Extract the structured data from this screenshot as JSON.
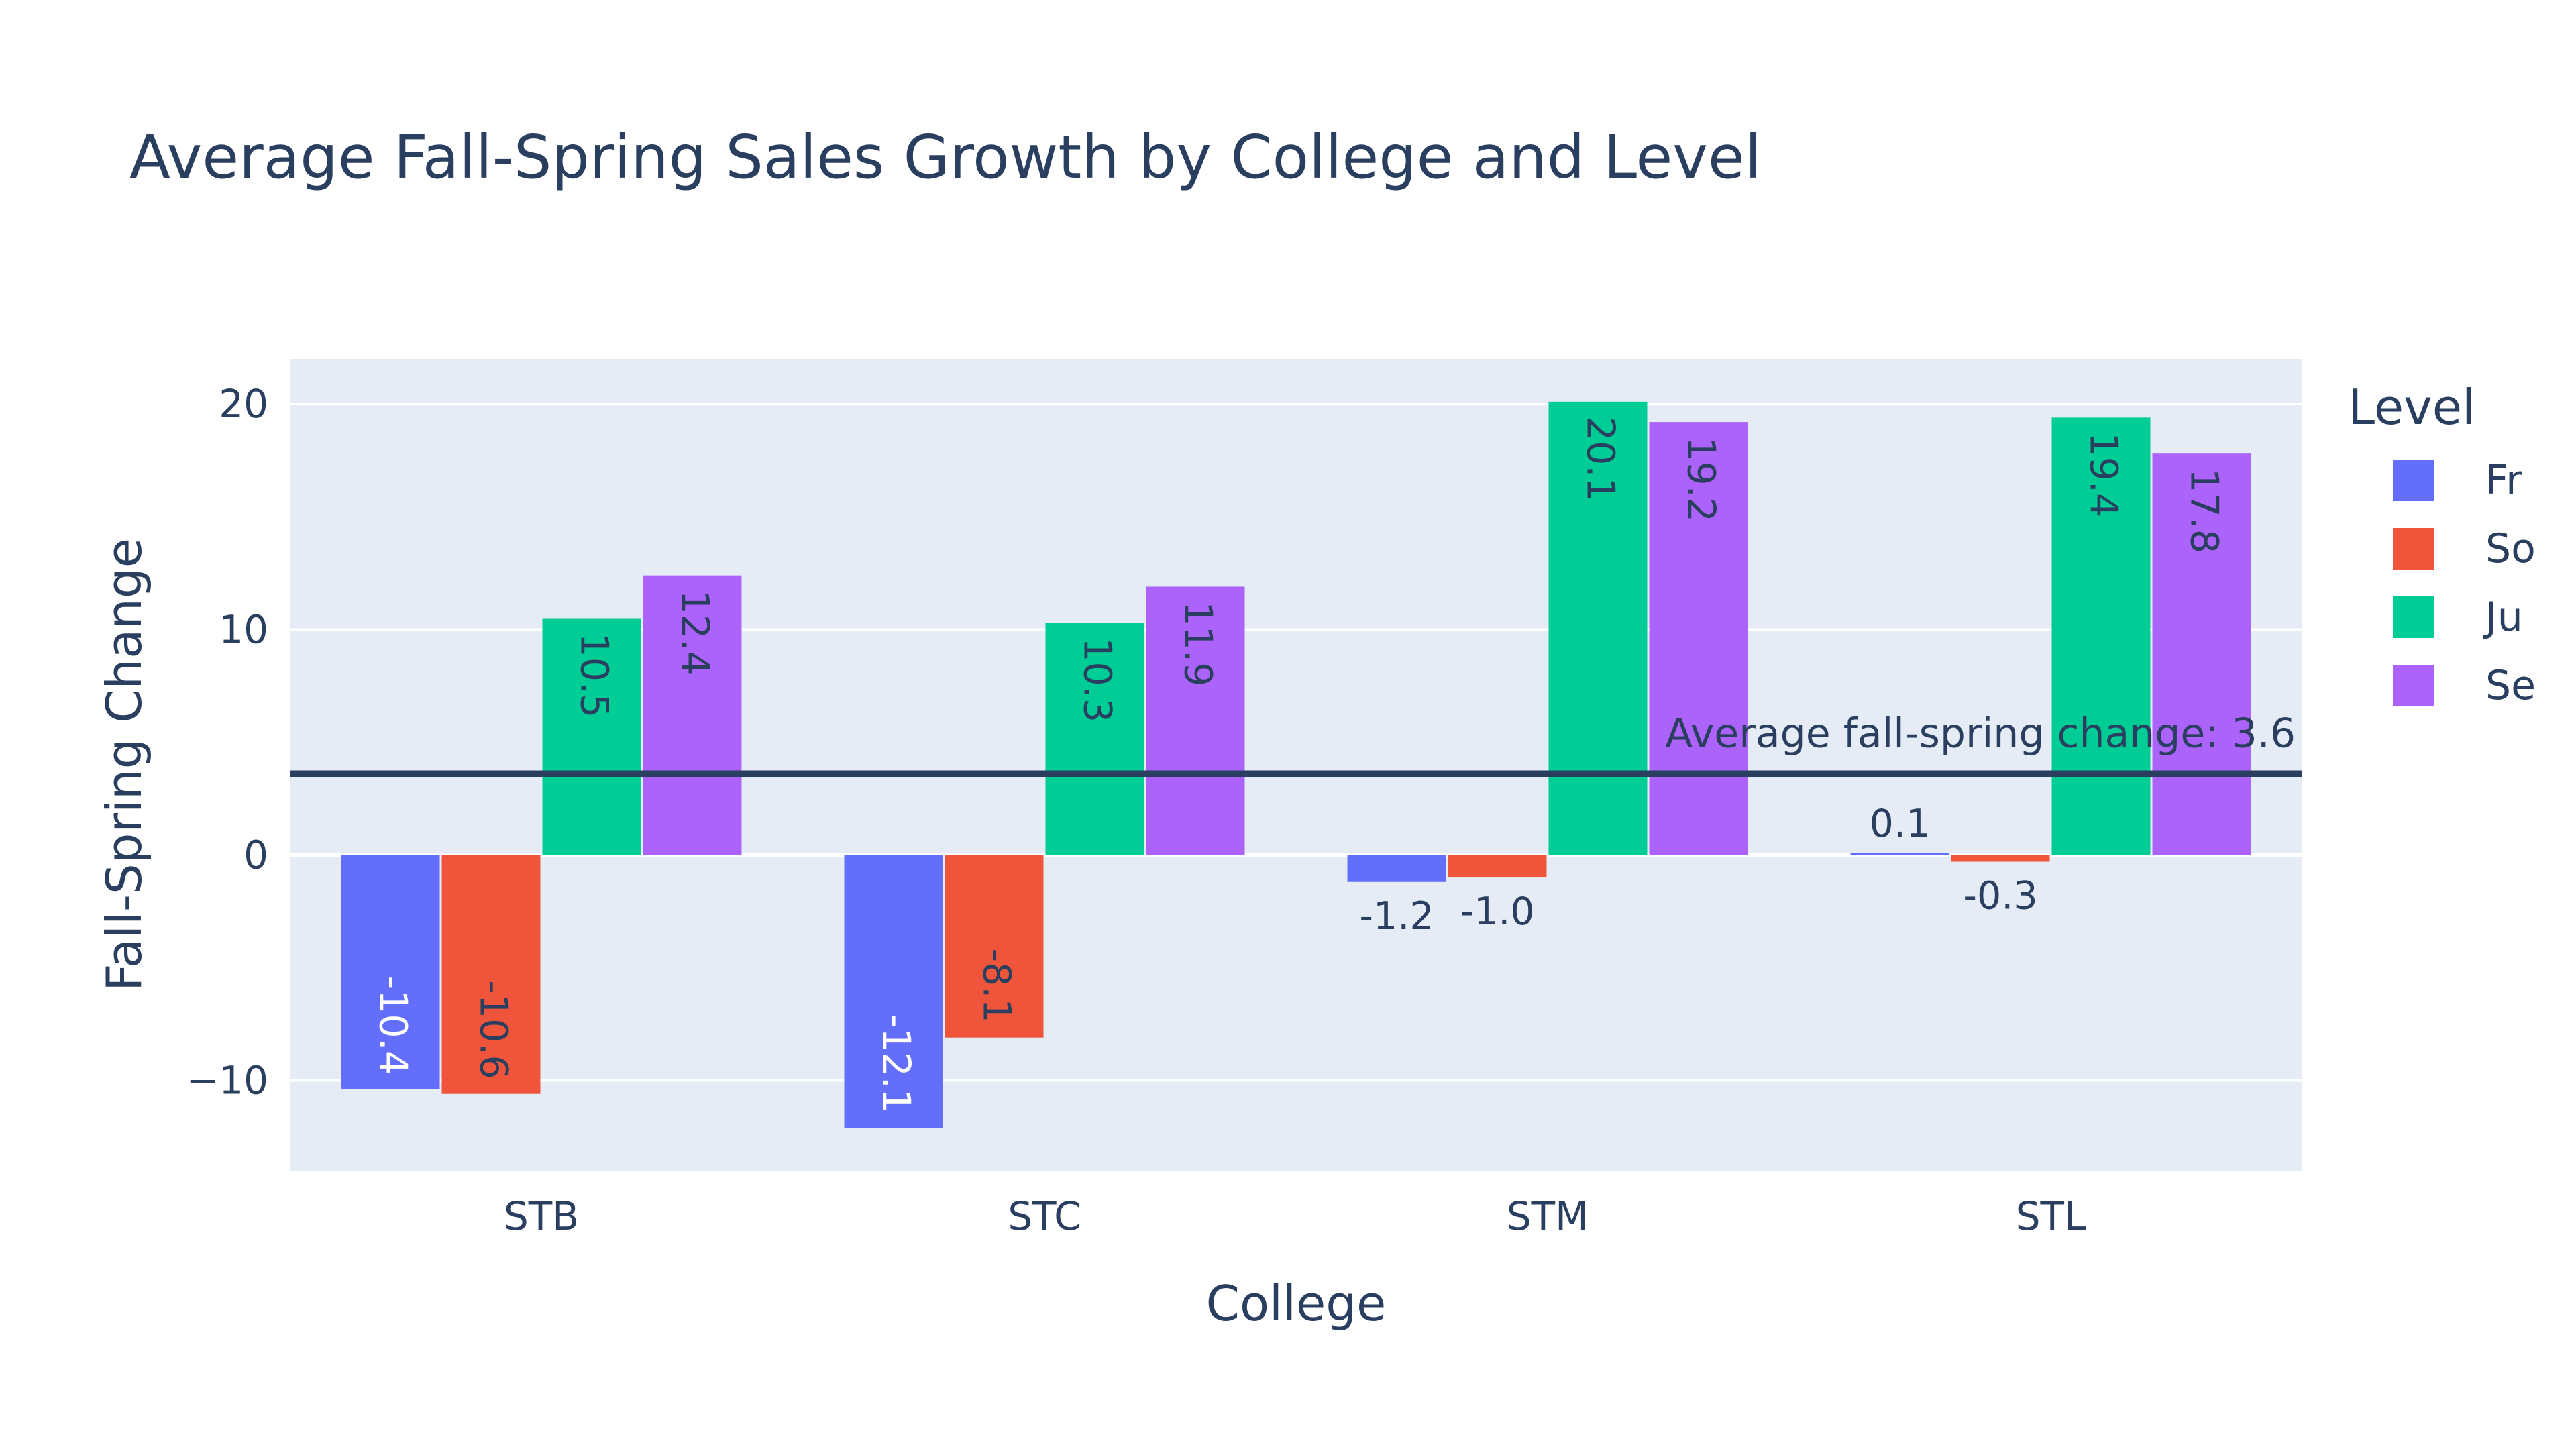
{
  "chart_data": {
    "type": "bar",
    "title": "Average Fall-Spring Sales Growth by College and Level",
    "xlabel": "College",
    "ylabel": "Fall-Spring Change",
    "categories": [
      "STB",
      "STC",
      "STM",
      "STL"
    ],
    "series": [
      {
        "name": "Fr",
        "color": "#636efa",
        "values": [
          -10.4,
          -12.1,
          -1.2,
          0.1
        ],
        "labels": [
          "-10.4",
          "-12.1",
          "-1.2",
          "0.1"
        ]
      },
      {
        "name": "So",
        "color": "#ef553b",
        "values": [
          -10.6,
          -8.1,
          -1.0,
          -0.3
        ],
        "labels": [
          "-10.6",
          "-8.1",
          "-1.0",
          "-0.3"
        ]
      },
      {
        "name": "Ju",
        "color": "#00cc96",
        "values": [
          10.5,
          10.3,
          20.1,
          19.4
        ],
        "labels": [
          "10.5",
          "10.3",
          "20.1",
          "19.4"
        ]
      },
      {
        "name": "Se",
        "color": "#ab63fa",
        "values": [
          12.4,
          11.9,
          19.2,
          17.8
        ],
        "labels": [
          "12.4",
          "11.9",
          "19.2",
          "17.8"
        ]
      }
    ],
    "ylim": [
      -14,
      22
    ],
    "yticks": [
      -10,
      0,
      10,
      20
    ],
    "ytick_labels": [
      "−10",
      "0",
      "10",
      "20"
    ],
    "grid": true,
    "legend": {
      "title": "Level",
      "placement": "right"
    },
    "reference_line": {
      "value": 3.6,
      "label": "Average fall-spring change: 3.6",
      "color": "#2a3f5f"
    },
    "plot_background": "#e5ecf6"
  }
}
